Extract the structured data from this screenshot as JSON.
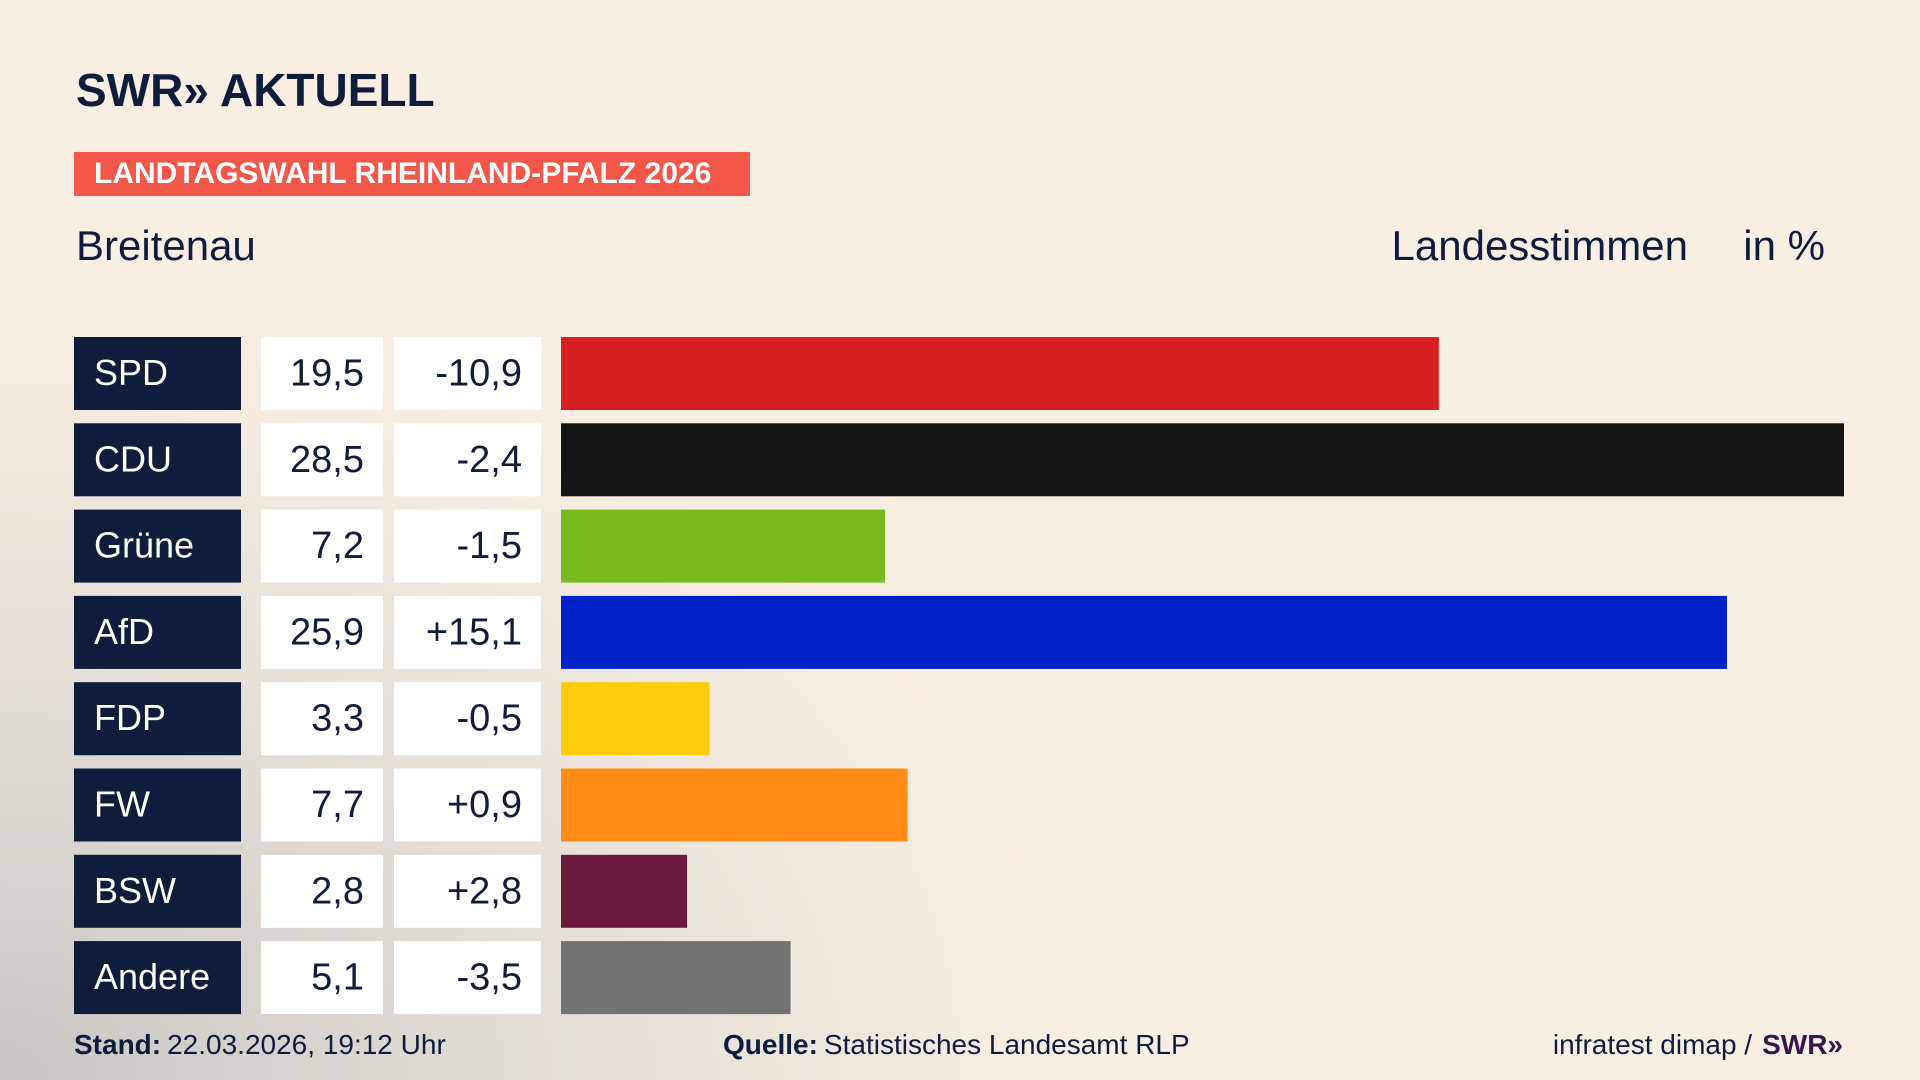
{
  "header": {
    "logo": "SWR» AKTUELL"
  },
  "chart_data": {
    "type": "bar",
    "title": "LANDTAGSWAHL RHEINLAND-PFALZ 2026",
    "subtitle": "Breitenau",
    "value_title": "Landesstimmen",
    "unit": "in %",
    "categories": [
      "SPD",
      "CDU",
      "Grüne",
      "AfD",
      "FDP",
      "FW",
      "BSW",
      "Andere"
    ],
    "values": [
      19.5,
      28.5,
      7.2,
      25.9,
      3.3,
      7.7,
      2.8,
      5.1
    ],
    "value_labels": [
      "19,5",
      "28,5",
      "7,2",
      "25,9",
      "3,3",
      "7,7",
      "2,8",
      "5,1"
    ],
    "changes": [
      -10.9,
      -2.4,
      -1.5,
      15.1,
      -0.5,
      0.9,
      2.8,
      -3.5
    ],
    "change_labels": [
      "-10,9",
      "-2,4",
      "-1,5",
      "+15,1",
      "-0,5",
      "+0,9",
      "+2,8",
      "-3,5"
    ],
    "colors": [
      "#d71f1f",
      "#141414",
      "#7aba1f",
      "#0020c8",
      "#ffcc0a",
      "#ff8c17",
      "#6b1a3d",
      "#737373"
    ]
  },
  "footer": {
    "stand_label": "Stand:",
    "stand": "22.03.2026, 19:12 Uhr",
    "source_label": "Quelle:",
    "source": "Statistisches Landesamt RLP",
    "credit": "infratest dimap /",
    "credit_logo": "SWR»"
  }
}
